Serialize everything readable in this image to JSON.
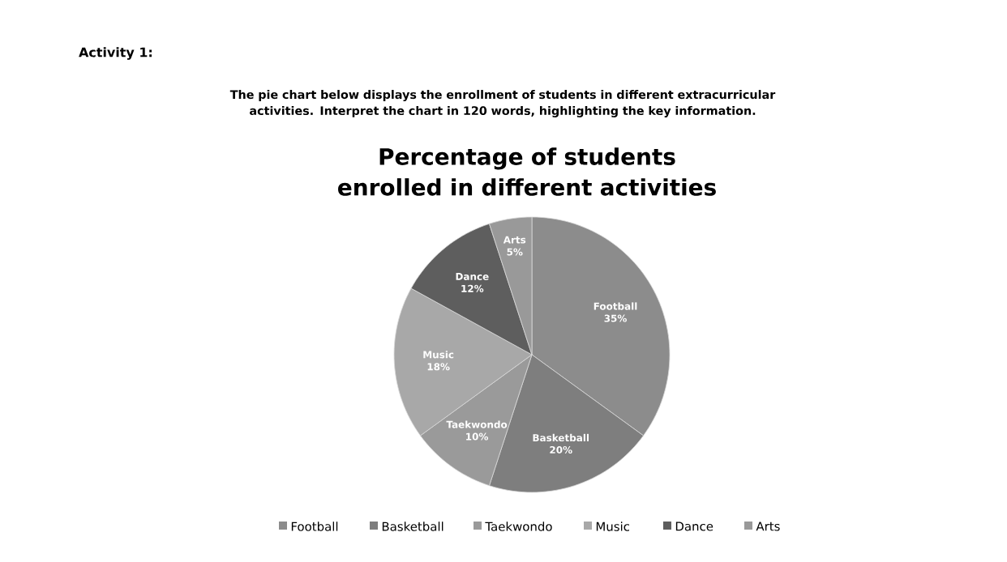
{
  "chart_data": {
    "type": "pie",
    "title": "Percentage of students enrolled in different activities",
    "annotations": [
      "Activity 1:",
      "The pie chart below displays the enrollment of students in different extracurricular activities. Interpret the chart in 120 words, highlighting the key information."
    ],
    "categories": [
      "Football",
      "Basketball",
      "Taekwondo",
      "Music",
      "Dance",
      "Arts"
    ],
    "values": [
      35,
      20,
      10,
      18,
      12,
      5
    ],
    "value_labels": [
      "35%",
      "20%",
      "10%",
      "18%",
      "12%",
      "5%"
    ],
    "colors": [
      "#8c8c8c",
      "#7e7e7e",
      "#9a9a9a",
      "#a8a8a8",
      "#5e5e5e",
      "#999999"
    ],
    "legend": "bottom"
  }
}
